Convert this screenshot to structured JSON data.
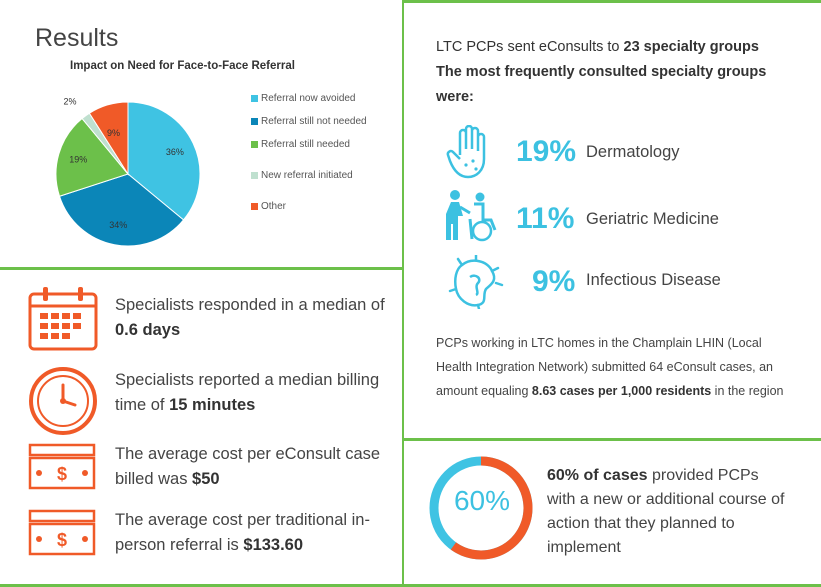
{
  "results_title": "Results",
  "chart_data": {
    "type": "pie",
    "title": "Impact on Need for Face-to-Face Referral",
    "categories": [
      "Referral now avoided",
      "Referral still not needed",
      "Referral still needed",
      "New referral initiated",
      "Other"
    ],
    "values": [
      36,
      34,
      19,
      2,
      9
    ],
    "value_labels": [
      "36%",
      "34%",
      "19%",
      "2%",
      "9%"
    ],
    "colors": [
      "#3fc3e3",
      "#0b86b8",
      "#6cc04a",
      "#bfe0cf",
      "#f05a28"
    ],
    "legend_position": "right"
  },
  "stats": [
    {
      "text": "Specialists responded in a median of ",
      "bold": "0.6 days",
      "icon": "calendar-icon"
    },
    {
      "text": "Specialists reported a median billing time of ",
      "bold": "15 minutes",
      "icon": "clock-icon"
    },
    {
      "text": "The average cost per eConsult case billed was ",
      "bold": "$50",
      "icon": "money-icon"
    },
    {
      "text": "The average cost per traditional in-person referral is ",
      "bold": "$133.60",
      "icon": "money-icon"
    }
  ],
  "specialty": {
    "intro_prefix": "LTC PCPs sent eConsults to ",
    "intro_bold": "23 specialty groups",
    "intro_bold2": "The most frequently consulted specialty groups",
    "intro_suffix": " were:",
    "groups": [
      {
        "pct": "19%",
        "name": "Dermatology",
        "icon": "hand-icon"
      },
      {
        "pct": "11%",
        "name": "Geriatric Medicine",
        "icon": "wheelchair-icon"
      },
      {
        "pct": "9%",
        "name": "Infectious Disease",
        "icon": "virus-icon"
      }
    ],
    "note_prefix": "PCPs working in LTC homes in the Champlain LHIN (Local Health Integration Network) submitted 64 eConsult cases, an amount equaling ",
    "note_bold": "8.63 cases per 1,000 residents",
    "note_suffix": " in the region"
  },
  "outcome": {
    "donut_value": 60,
    "donut_label": "60%",
    "text_bold": "60% of cases",
    "text_rest": " provided PCPs with a new or additional course of action that they planned to implement",
    "colors": {
      "fill": "#f05a28",
      "track": "#3fc3e3"
    }
  }
}
